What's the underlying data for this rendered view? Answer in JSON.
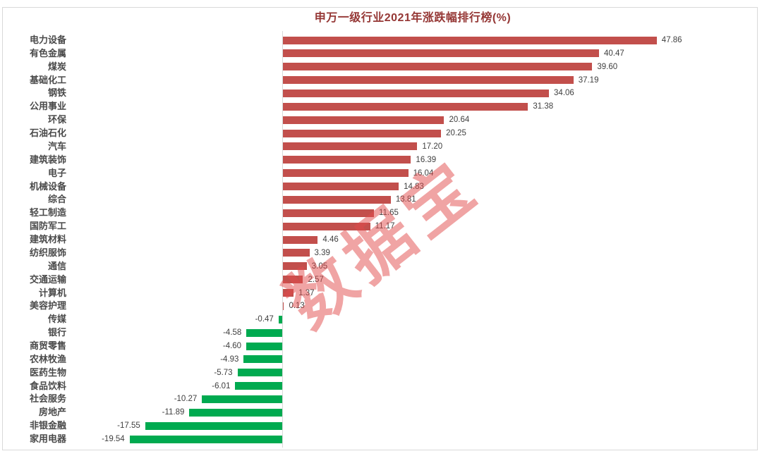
{
  "title": "申万一级行业2021年涨跌幅排行榜(%)",
  "watermark": "数据宝",
  "colors": {
    "positive_bar": "#c24f4c",
    "negative_bar": "#00aa50",
    "title_text": "#953735",
    "axis_line": "#d9d9d9",
    "frame_border": "#d9d9d9",
    "category_text": "#4a4a4a",
    "value_text": "#3f3f3f",
    "watermark_text": "rgba(226,74,74,0.5)"
  },
  "chart_data": {
    "type": "bar",
    "orientation": "horizontal",
    "title": "申万一级行业2021年涨跌幅排行榜(%)",
    "xlabel": "",
    "ylabel": "",
    "xlim": [
      -25,
      55
    ],
    "grid": false,
    "legend": null,
    "value_labels": "two_decimals_at_bar_end",
    "categories": [
      "电力设备",
      "有色金属",
      "煤炭",
      "基础化工",
      "钢铁",
      "公用事业",
      "环保",
      "石油石化",
      "汽车",
      "建筑装饰",
      "电子",
      "机械设备",
      "综合",
      "轻工制造",
      "国防军工",
      "建筑材料",
      "纺织服饰",
      "通信",
      "交通运输",
      "计算机",
      "美容护理",
      "传媒",
      "银行",
      "商贸零售",
      "农林牧渔",
      "医药生物",
      "食品饮料",
      "社会服务",
      "房地产",
      "非银金融",
      "家用电器"
    ],
    "values": [
      47.86,
      40.47,
      39.6,
      37.19,
      34.06,
      31.38,
      20.64,
      20.25,
      17.2,
      16.39,
      16.04,
      14.83,
      13.81,
      11.65,
      11.17,
      4.46,
      3.39,
      3.05,
      2.57,
      1.37,
      0.13,
      -0.47,
      -4.58,
      -4.6,
      -4.93,
      -5.73,
      -6.01,
      -10.27,
      -11.89,
      -17.55,
      -19.54
    ]
  }
}
